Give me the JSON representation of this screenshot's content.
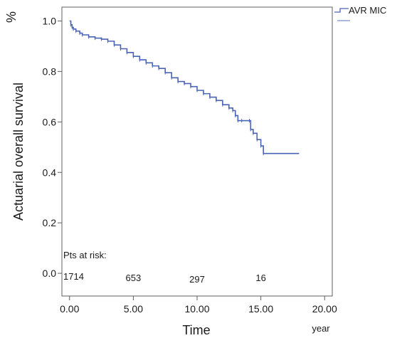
{
  "chart_data": {
    "type": "line",
    "ylabel": "Actuarial overall survival",
    "y_unit": "%",
    "xlabel": "Time",
    "x_unit": "year",
    "xlim": [
      0,
      20
    ],
    "ylim": [
      0,
      1.0
    ],
    "x_ticks": [
      "0.00",
      "5.00",
      "10.00",
      "15.00",
      "20.00"
    ],
    "y_ticks": [
      "0.0",
      "0.2",
      "0.4",
      "0.6",
      "0.8",
      "1.0"
    ],
    "legend_position": "top-right",
    "series": [
      {
        "name": "AVR MIC",
        "color": "#4a63b5",
        "step": true,
        "points": [
          [
            0,
            1.0
          ],
          [
            0.1,
            0.985
          ],
          [
            0.2,
            0.975
          ],
          [
            0.3,
            0.968
          ],
          [
            0.5,
            0.96
          ],
          [
            0.8,
            0.952
          ],
          [
            1.0,
            0.945
          ],
          [
            1.5,
            0.937
          ],
          [
            2.0,
            0.932
          ],
          [
            2.5,
            0.928
          ],
          [
            3.0,
            0.92
          ],
          [
            3.5,
            0.905
          ],
          [
            4.0,
            0.89
          ],
          [
            4.5,
            0.875
          ],
          [
            5.0,
            0.86
          ],
          [
            5.5,
            0.846
          ],
          [
            6.0,
            0.834
          ],
          [
            6.5,
            0.822
          ],
          [
            7.0,
            0.812
          ],
          [
            7.5,
            0.795
          ],
          [
            8.0,
            0.775
          ],
          [
            8.5,
            0.76
          ],
          [
            9.0,
            0.752
          ],
          [
            9.5,
            0.74
          ],
          [
            10.0,
            0.725
          ],
          [
            10.5,
            0.712
          ],
          [
            11.0,
            0.698
          ],
          [
            11.5,
            0.685
          ],
          [
            12.0,
            0.668
          ],
          [
            12.5,
            0.655
          ],
          [
            12.8,
            0.645
          ],
          [
            13.0,
            0.625
          ],
          [
            13.2,
            0.605
          ],
          [
            13.5,
            0.605
          ],
          [
            14.1,
            0.605
          ],
          [
            14.2,
            0.57
          ],
          [
            14.4,
            0.555
          ],
          [
            14.7,
            0.53
          ],
          [
            15.0,
            0.505
          ],
          [
            15.2,
            0.475
          ],
          [
            18.0,
            0.475
          ]
        ]
      }
    ],
    "risk_table": {
      "label": "Pts at risk:",
      "times": [
        0,
        5,
        10,
        15
      ],
      "values": [
        "1714",
        "653",
        "297",
        "16"
      ]
    }
  }
}
